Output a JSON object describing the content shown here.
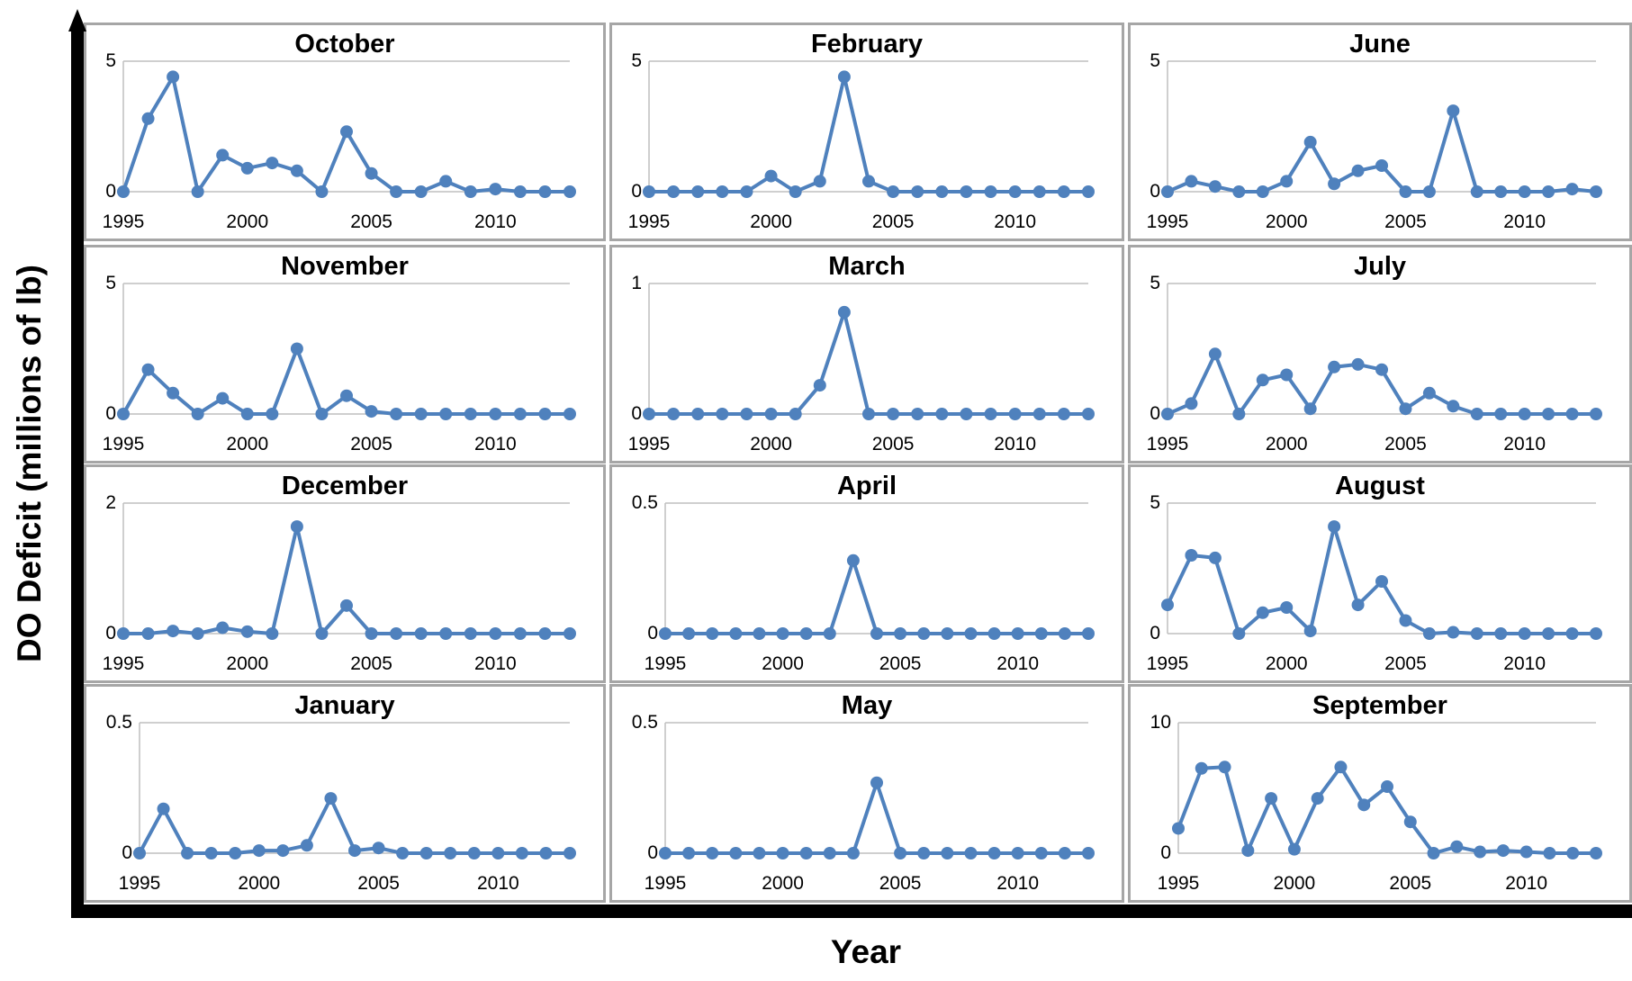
{
  "figure": {
    "ylabel": "DO Deficit (millions of lb)",
    "xlabel": "Year"
  },
  "colors": {
    "series": "#4F81BD",
    "panel_border": "#A6A6A6",
    "gridline": "#BFBFBF",
    "axis_arrow": "#000000"
  },
  "chart_data": [
    {
      "type": "line",
      "title": "October",
      "x_start": 1995,
      "x_end": 2013,
      "x_ticks": [
        1995,
        2000,
        2005,
        2010
      ],
      "ylim": [
        0,
        5
      ],
      "y_ticks": [
        0,
        5
      ],
      "y_tick_labels": [
        "0",
        "5"
      ],
      "values": [
        0,
        2.8,
        4.4,
        0,
        1.4,
        0.9,
        1.1,
        0.8,
        0,
        2.3,
        0.7,
        0,
        0,
        0.4,
        0,
        0.1,
        0,
        0,
        0
      ]
    },
    {
      "type": "line",
      "title": "February",
      "x_start": 1995,
      "x_end": 2013,
      "x_ticks": [
        1995,
        2000,
        2005,
        2010
      ],
      "ylim": [
        0,
        5
      ],
      "y_ticks": [
        0,
        5
      ],
      "y_tick_labels": [
        "0",
        "5"
      ],
      "values": [
        0,
        0,
        0,
        0,
        0,
        0.6,
        0,
        0.4,
        4.4,
        0.4,
        0,
        0,
        0,
        0,
        0,
        0,
        0,
        0,
        0
      ]
    },
    {
      "type": "line",
      "title": "June",
      "x_start": 1995,
      "x_end": 2013,
      "x_ticks": [
        1995,
        2000,
        2005,
        2010
      ],
      "ylim": [
        0,
        5
      ],
      "y_ticks": [
        0,
        5
      ],
      "y_tick_labels": [
        "0",
        "5"
      ],
      "values": [
        0,
        0.4,
        0.2,
        0,
        0,
        0.4,
        1.9,
        0.3,
        0.8,
        1.0,
        0,
        0,
        3.1,
        0,
        0,
        0,
        0,
        0.1,
        0
      ]
    },
    {
      "type": "line",
      "title": "November",
      "x_start": 1995,
      "x_end": 2013,
      "x_ticks": [
        1995,
        2000,
        2005,
        2010
      ],
      "ylim": [
        0,
        5
      ],
      "y_ticks": [
        0,
        5
      ],
      "y_tick_labels": [
        "0",
        "5"
      ],
      "values": [
        0,
        1.7,
        0.8,
        0,
        0.6,
        0,
        0,
        2.5,
        0,
        0.7,
        0.1,
        0,
        0,
        0,
        0,
        0,
        0,
        0,
        0
      ]
    },
    {
      "type": "line",
      "title": "March",
      "x_start": 1995,
      "x_end": 2013,
      "x_ticks": [
        1995,
        2000,
        2005,
        2010
      ],
      "ylim": [
        0,
        1
      ],
      "y_ticks": [
        0,
        1
      ],
      "y_tick_labels": [
        "0",
        "1"
      ],
      "values": [
        0,
        0,
        0,
        0,
        0,
        0,
        0,
        0.22,
        0.78,
        0,
        0,
        0,
        0,
        0,
        0,
        0,
        0,
        0,
        0
      ]
    },
    {
      "type": "line",
      "title": "July",
      "x_start": 1995,
      "x_end": 2013,
      "x_ticks": [
        1995,
        2000,
        2005,
        2010
      ],
      "ylim": [
        0,
        5
      ],
      "y_ticks": [
        0,
        5
      ],
      "y_tick_labels": [
        "0",
        "5"
      ],
      "values": [
        0,
        0.4,
        2.3,
        0,
        1.3,
        1.5,
        0.2,
        1.8,
        1.9,
        1.7,
        0.2,
        0.8,
        0.3,
        0,
        0,
        0,
        0,
        0,
        0
      ]
    },
    {
      "type": "line",
      "title": "December",
      "x_start": 1995,
      "x_end": 2013,
      "x_ticks": [
        1995,
        2000,
        2005,
        2010
      ],
      "ylim": [
        0,
        2
      ],
      "y_ticks": [
        0,
        2
      ],
      "y_tick_labels": [
        "0",
        "2"
      ],
      "values": [
        0,
        0,
        0.04,
        0,
        0.09,
        0.03,
        0,
        1.64,
        0,
        0.43,
        0,
        0,
        0,
        0,
        0,
        0,
        0,
        0,
        0
      ]
    },
    {
      "type": "line",
      "title": "April",
      "x_start": 1995,
      "x_end": 2013,
      "x_ticks": [
        1995,
        2000,
        2005,
        2010
      ],
      "ylim": [
        0,
        0.5
      ],
      "y_ticks": [
        0,
        0.5
      ],
      "y_tick_labels": [
        "0",
        "0.5"
      ],
      "values": [
        0,
        0,
        0,
        0,
        0,
        0,
        0,
        0,
        0.28,
        0,
        0,
        0,
        0,
        0,
        0,
        0,
        0,
        0,
        0
      ]
    },
    {
      "type": "line",
      "title": "August",
      "x_start": 1995,
      "x_end": 2013,
      "x_ticks": [
        1995,
        2000,
        2005,
        2010
      ],
      "ylim": [
        0,
        5
      ],
      "y_ticks": [
        0,
        5
      ],
      "y_tick_labels": [
        "0",
        "5"
      ],
      "values": [
        1.1,
        3.0,
        2.9,
        0,
        0.8,
        1.0,
        0.1,
        4.1,
        1.1,
        2.0,
        0.5,
        0,
        0.05,
        0,
        0,
        0,
        0,
        0,
        0
      ]
    },
    {
      "type": "line",
      "title": "January",
      "x_start": 1995,
      "x_end": 2013,
      "x_ticks": [
        1995,
        2000,
        2005,
        2010
      ],
      "ylim": [
        0,
        0.5
      ],
      "y_ticks": [
        0,
        0.5
      ],
      "y_tick_labels": [
        "0",
        "0.5"
      ],
      "values": [
        0,
        0.17,
        0,
        0,
        0,
        0.01,
        0.01,
        0.03,
        0.21,
        0.01,
        0.02,
        0,
        0,
        0,
        0,
        0,
        0,
        0,
        0
      ]
    },
    {
      "type": "line",
      "title": "May",
      "x_start": 1995,
      "x_end": 2013,
      "x_ticks": [
        1995,
        2000,
        2005,
        2010
      ],
      "ylim": [
        0,
        0.5
      ],
      "y_ticks": [
        0,
        0.5
      ],
      "y_tick_labels": [
        "0",
        "0.5"
      ],
      "values": [
        0,
        0,
        0,
        0,
        0,
        0,
        0,
        0,
        0,
        0.27,
        0,
        0,
        0,
        0,
        0,
        0,
        0,
        0,
        0
      ]
    },
    {
      "type": "line",
      "title": "September",
      "x_start": 1995,
      "x_end": 2013,
      "x_ticks": [
        1995,
        2000,
        2005,
        2010
      ],
      "ylim": [
        0,
        10
      ],
      "y_ticks": [
        0,
        10
      ],
      "y_tick_labels": [
        "0",
        "10"
      ],
      "values": [
        1.9,
        6.5,
        6.6,
        0.2,
        4.2,
        0.3,
        4.2,
        6.6,
        3.7,
        5.1,
        2.4,
        0,
        0.5,
        0.1,
        0.2,
        0.1,
        0,
        0,
        0
      ]
    }
  ]
}
